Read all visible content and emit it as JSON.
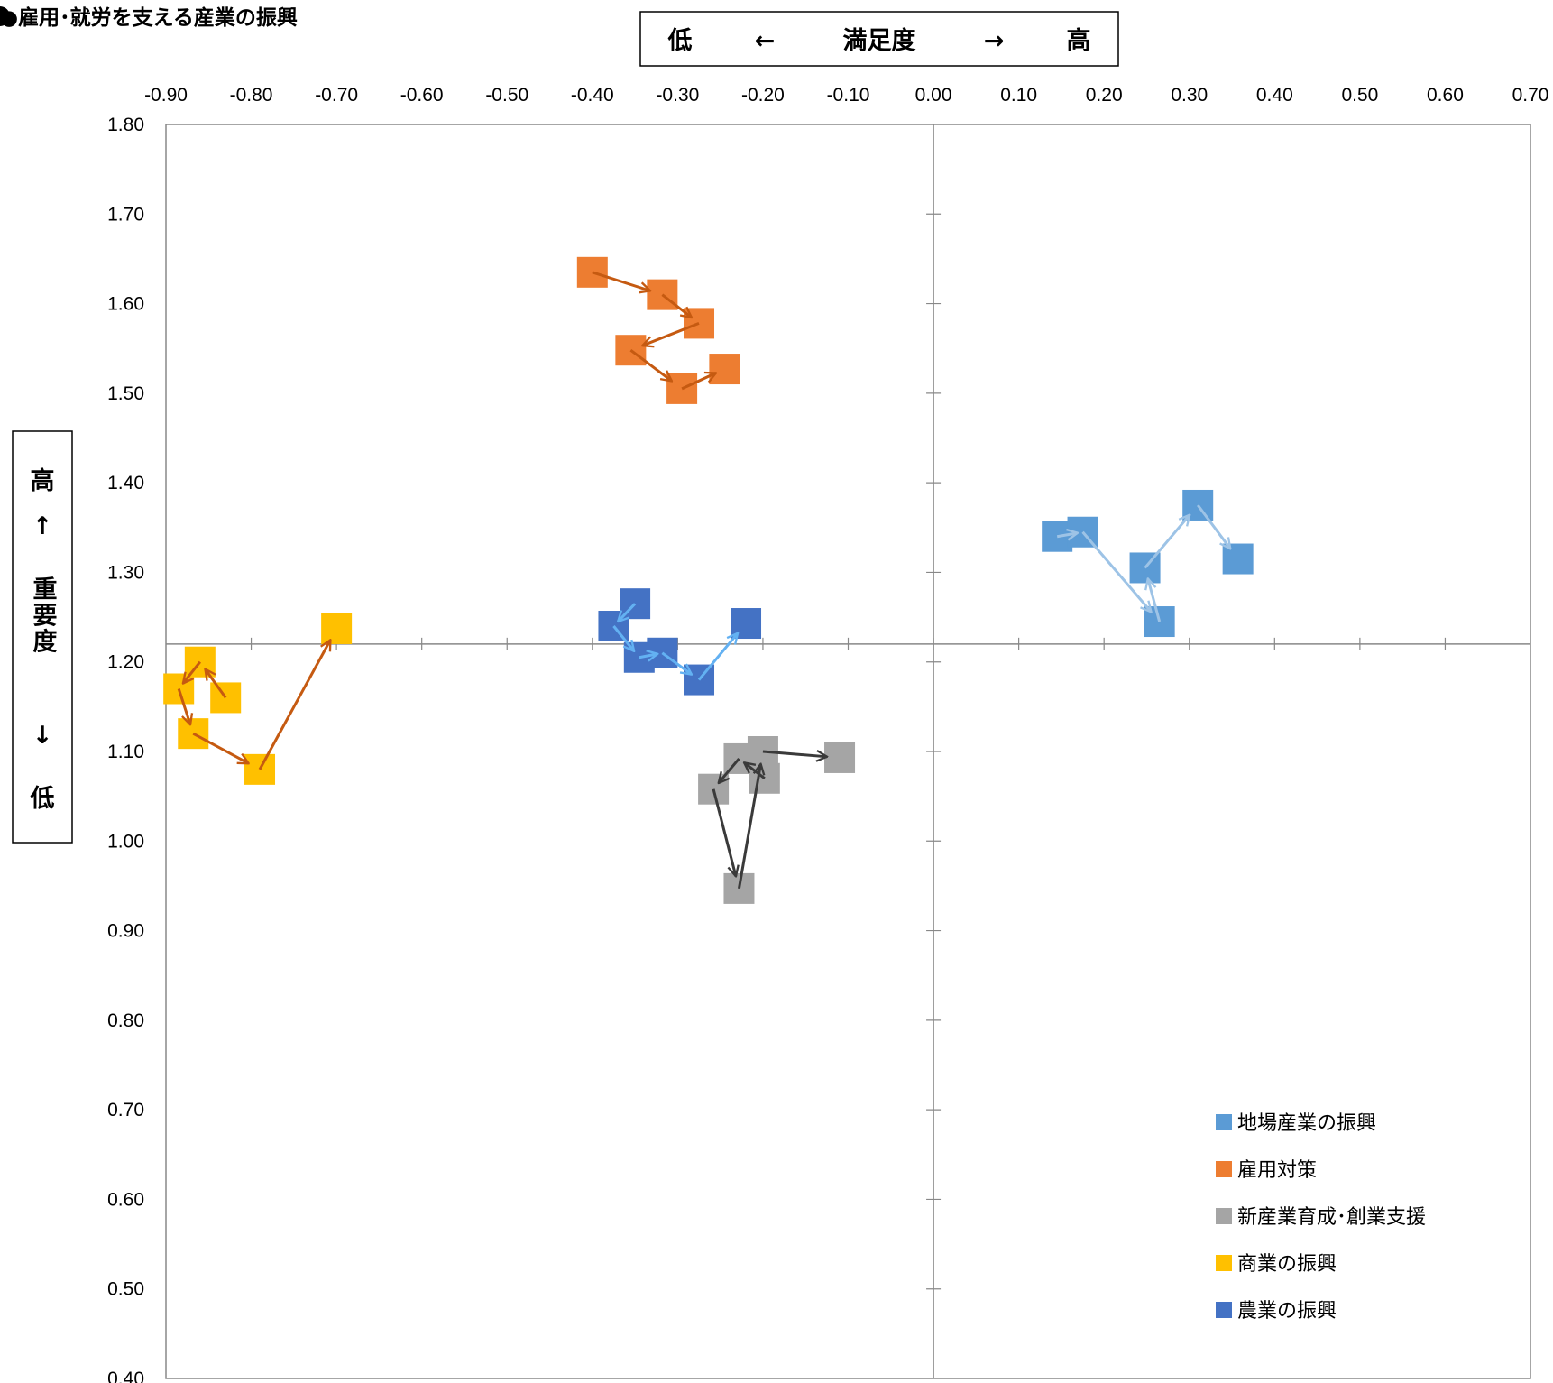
{
  "title": "●雇用･就労を支える産業の振興",
  "x_axis_label": {
    "low": "低",
    "left_arrow": "←",
    "name": "満足度",
    "right_arrow": "→",
    "high": "高"
  },
  "y_axis_label": {
    "high": "高",
    "up_arrow": "↑",
    "name": "重要度",
    "down_arrow": "↓",
    "low": "低"
  },
  "chart_data": {
    "type": "scatter",
    "title": "",
    "xlabel": "低 ← 満足度 → 高",
    "ylabel": "高 ↑ 重要度 ↓ 低",
    "xlim": [
      -0.9,
      0.7
    ],
    "ylim": [
      0.4,
      1.8
    ],
    "x_ticks": [
      "-0.90",
      "-0.80",
      "-0.70",
      "-0.60",
      "-0.50",
      "-0.40",
      "-0.30",
      "-0.20",
      "-0.10",
      "0.00",
      "0.10",
      "0.20",
      "0.30",
      "0.40",
      "0.50",
      "0.60",
      "0.70"
    ],
    "y_ticks": [
      "1.80",
      "1.70",
      "1.60",
      "1.50",
      "1.40",
      "1.30",
      "1.20",
      "1.10",
      "1.00",
      "0.90",
      "0.80",
      "0.70",
      "0.60",
      "0.50",
      "0.40"
    ],
    "crosshair": {
      "x": 0.0,
      "y": 1.22
    },
    "grid": false,
    "legend_position": "bottom-right",
    "marker": "square",
    "series": [
      {
        "name": "地場産業の振興",
        "color": "#5b9bd5",
        "arrow_color": "#9dc3e6",
        "points": [
          [
            0.145,
            1.34
          ],
          [
            0.175,
            1.345
          ],
          [
            0.265,
            1.245
          ],
          [
            0.248,
            1.305
          ],
          [
            0.31,
            1.375
          ],
          [
            0.357,
            1.315
          ]
        ]
      },
      {
        "name": "雇用対策",
        "color": "#ed7d31",
        "arrow_color": "#c55a11",
        "points": [
          [
            -0.4,
            1.635
          ],
          [
            -0.318,
            1.61
          ],
          [
            -0.275,
            1.578
          ],
          [
            -0.355,
            1.548
          ],
          [
            -0.295,
            1.505
          ],
          [
            -0.245,
            1.527
          ]
        ]
      },
      {
        "name": "新産業育成･創業支援",
        "color": "#a5a5a5",
        "arrow_color": "#3a3a3a",
        "points": [
          [
            -0.198,
            1.07
          ],
          [
            -0.228,
            1.092
          ],
          [
            -0.258,
            1.058
          ],
          [
            -0.228,
            0.947
          ],
          [
            -0.2,
            1.1
          ],
          [
            -0.11,
            1.093
          ]
        ]
      },
      {
        "name": "商業の振興",
        "color": "#ffc000",
        "arrow_color": "#c55a11",
        "points": [
          [
            -0.83,
            1.16
          ],
          [
            -0.86,
            1.2
          ],
          [
            -0.885,
            1.17
          ],
          [
            -0.868,
            1.12
          ],
          [
            -0.79,
            1.08
          ],
          [
            -0.7,
            1.237
          ]
        ]
      },
      {
        "name": "農業の振興",
        "color": "#4472c4",
        "arrow_color": "#63b1f2",
        "points": [
          [
            -0.35,
            1.265
          ],
          [
            -0.375,
            1.24
          ],
          [
            -0.345,
            1.205
          ],
          [
            -0.318,
            1.21
          ],
          [
            -0.275,
            1.18
          ],
          [
            -0.22,
            1.243
          ]
        ]
      }
    ]
  }
}
